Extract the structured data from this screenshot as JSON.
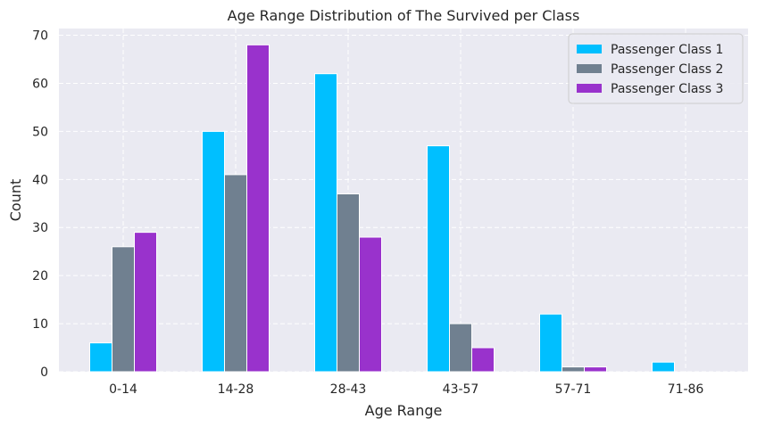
{
  "chart_data": {
    "type": "bar",
    "title": "Age Range Distribution of The Survived per Class",
    "xlabel": "Age Range",
    "ylabel": "Count",
    "categories": [
      "0-14",
      "14-28",
      "28-43",
      "43-57",
      "57-71",
      "71-86"
    ],
    "series": [
      {
        "name": "Passenger Class 1",
        "color": "#00bfff",
        "values": [
          6,
          50,
          62,
          47,
          12,
          2
        ]
      },
      {
        "name": "Passenger Class 2",
        "color": "#708090",
        "values": [
          26,
          41,
          37,
          10,
          1,
          0
        ]
      },
      {
        "name": "Passenger Class 3",
        "color": "#9932cc",
        "values": [
          29,
          68,
          28,
          5,
          1,
          0
        ]
      }
    ],
    "ylim": [
      0,
      71.4
    ],
    "yticks": [
      0,
      10,
      20,
      30,
      40,
      50,
      60,
      70
    ],
    "grid": true,
    "legend_position": "top-right",
    "background": "#eaeaf2"
  }
}
